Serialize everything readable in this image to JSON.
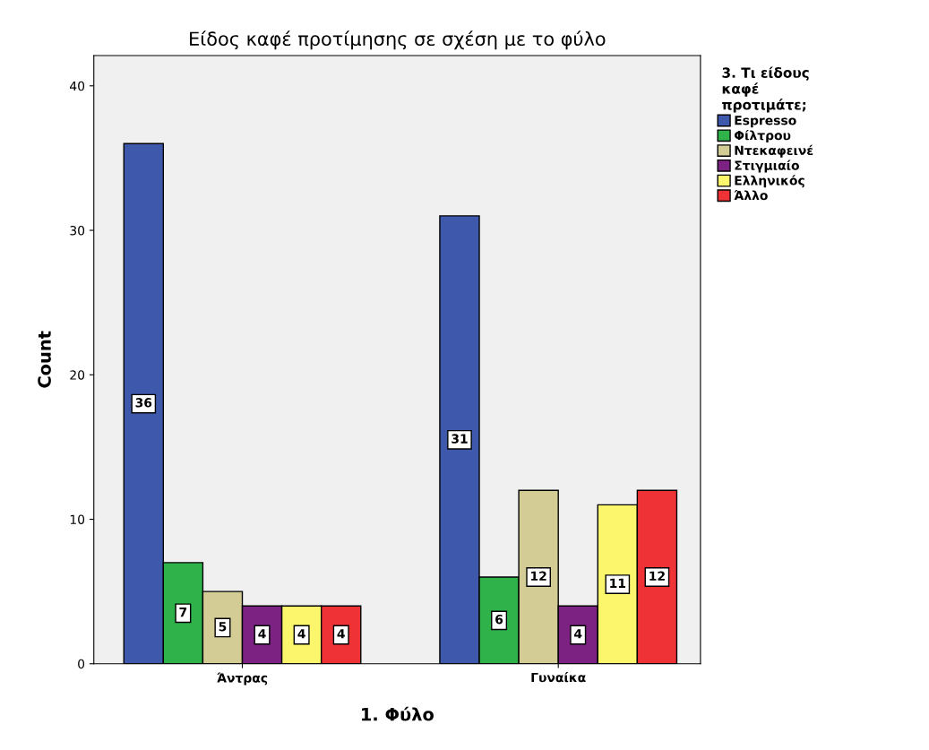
{
  "chart_data": {
    "type": "bar",
    "title": "Είδος καφέ προτίμησης σε σχέση με το φύλο",
    "xlabel": "1. Φύλο",
    "ylabel": "Count",
    "legend_title": "3. Τι είδους\nκαφέ\nπροτιμάτε;",
    "categories": [
      "Άντρας",
      "Γυναίκα"
    ],
    "series": [
      {
        "name": "Espresso",
        "color": "#3e58ac",
        "values": [
          36,
          31
        ]
      },
      {
        "name": "Φίλτρου",
        "color": "#2fb24a",
        "values": [
          7,
          6
        ]
      },
      {
        "name": "Ντεκαφεινέ",
        "color": "#d4cc95",
        "values": [
          5,
          12
        ]
      },
      {
        "name": "Στιγμιαίο",
        "color": "#7b2282",
        "values": [
          4,
          4
        ]
      },
      {
        "name": "Ελληνικός",
        "color": "#fbf66c",
        "values": [
          4,
          11
        ]
      },
      {
        "name": "Άλλο",
        "color": "#ee3236",
        "values": [
          4,
          12
        ]
      }
    ],
    "ylim": [
      0,
      42.1
    ],
    "yticks": [
      0,
      10,
      20,
      30,
      40
    ],
    "data_labels": true,
    "legend": "right",
    "grid": false
  }
}
